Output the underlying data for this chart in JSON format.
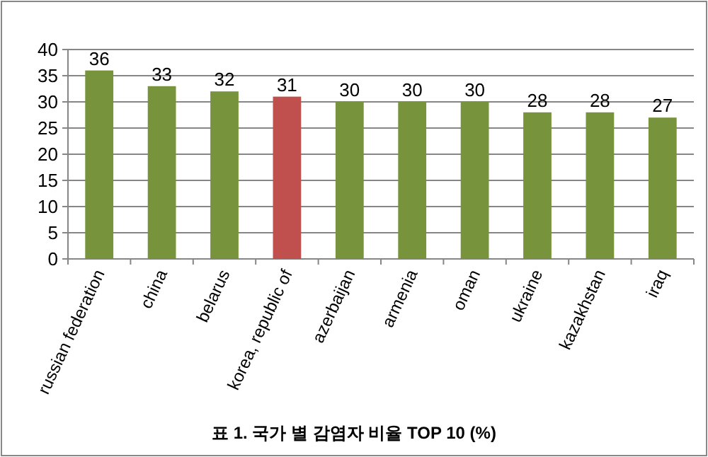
{
  "chart_data": {
    "type": "bar",
    "title": "표 1. 국가 별 감염자 비율 TOP 10 (%)",
    "categories": [
      "russian federation",
      "china",
      "belarus",
      "korea, republic of",
      "azerbaijan",
      "armenia",
      "oman",
      "ukraine",
      "kazakhstan",
      "iraq"
    ],
    "values": [
      36,
      33,
      32,
      31,
      30,
      30,
      30,
      28,
      28,
      27
    ],
    "colors": [
      "#77933c",
      "#77933c",
      "#77933c",
      "#c0504d",
      "#77933c",
      "#77933c",
      "#77933c",
      "#77933c",
      "#77933c",
      "#77933c"
    ],
    "ylim": [
      0,
      40
    ],
    "yticks": [
      0,
      5,
      10,
      15,
      20,
      25,
      30,
      35,
      40
    ],
    "grid": "y",
    "data_labels": true
  }
}
